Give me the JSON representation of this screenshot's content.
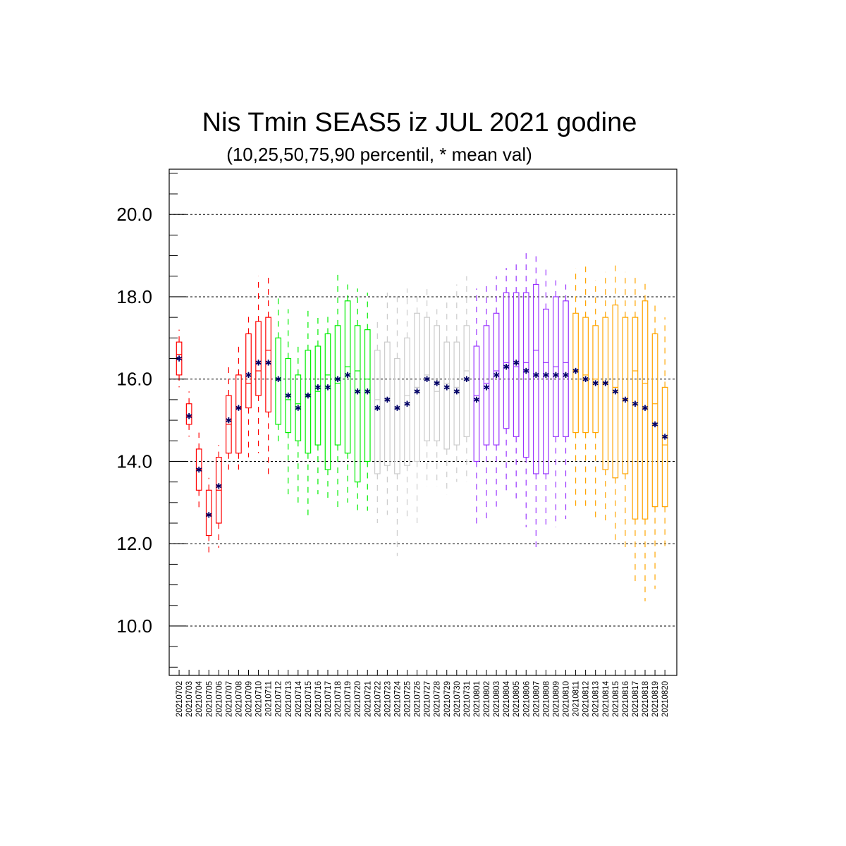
{
  "chart_data": {
    "type": "box",
    "title": "Nis Tmin SEAS5 iz JUL 2021 godine",
    "subtitle": "(10,25,50,75,90 percentil, * mean val)",
    "xlabel": "",
    "ylabel": "",
    "ylim": [
      8.8,
      21.1
    ],
    "yticks": [
      10.0,
      12.0,
      14.0,
      16.0,
      18.0,
      20.0
    ],
    "ytick_labels": [
      "10.0",
      "12.0",
      "14.0",
      "16.0",
      "18.0",
      "20.0"
    ],
    "y_minor_step": 0.5,
    "grid": "horizontal dashed at major ticks",
    "mean_marker": "*",
    "mean_color": "#000066",
    "month_colors": {
      "early_july": "#ff0000",
      "mid_july": "#00ee00",
      "late_july": "#cccccc",
      "early_august": "#9933ff",
      "mid_august": "#ffa500"
    },
    "categories": [
      "20210702",
      "20210703",
      "20210704",
      "20210705",
      "20210706",
      "20210707",
      "20210708",
      "20210709",
      "20210710",
      "20210711",
      "20210712",
      "20210713",
      "20210714",
      "20210715",
      "20210716",
      "20210717",
      "20210718",
      "20210719",
      "20210720",
      "20210721",
      "20210722",
      "20210723",
      "20210724",
      "20210725",
      "20210726",
      "20210727",
      "20210728",
      "20210729",
      "20210730",
      "20210731",
      "20210801",
      "20210802",
      "20210803",
      "20210804",
      "20210805",
      "20210806",
      "20210807",
      "20210808",
      "20210809",
      "20210810",
      "20210811",
      "20210812",
      "20210813",
      "20210814",
      "20210815",
      "20210816",
      "20210817",
      "20210818",
      "20210819",
      "20210820"
    ],
    "color_groups": [
      "early_july",
      "early_july",
      "early_july",
      "early_july",
      "early_july",
      "early_july",
      "early_july",
      "early_july",
      "early_july",
      "early_july",
      "mid_july",
      "mid_july",
      "mid_july",
      "mid_july",
      "mid_july",
      "mid_july",
      "mid_july",
      "mid_july",
      "mid_july",
      "mid_july",
      "late_july",
      "late_july",
      "late_july",
      "late_july",
      "late_july",
      "late_july",
      "late_july",
      "late_july",
      "late_july",
      "late_july",
      "early_august",
      "early_august",
      "early_august",
      "early_august",
      "early_august",
      "early_august",
      "early_august",
      "early_august",
      "early_august",
      "early_august",
      "mid_august",
      "mid_august",
      "mid_august",
      "mid_august",
      "mid_august",
      "mid_august",
      "mid_august",
      "mid_august",
      "mid_august",
      "mid_august"
    ],
    "p10": [
      15.8,
      14.6,
      12.8,
      11.7,
      11.9,
      13.8,
      13.8,
      14.1,
      14.2,
      13.6,
      14.4,
      13.2,
      13.0,
      12.6,
      13.2,
      13.0,
      12.8,
      13.0,
      12.7,
      12.8,
      12.5,
      12.7,
      11.7,
      12.6,
      12.5,
      13.4,
      13.4,
      13.2,
      13.5,
      13.5,
      12.4,
      12.5,
      12.9,
      13.3,
      13.1,
      12.4,
      11.8,
      12.4,
      12.4,
      12.6,
      12.8,
      12.8,
      12.6,
      12.5,
      12.0,
      11.9,
      11.0,
      10.6,
      10.9,
      11.9
    ],
    "p25": [
      16.1,
      14.9,
      13.3,
      12.2,
      12.5,
      14.2,
      14.2,
      15.3,
      15.6,
      15.2,
      14.9,
      14.7,
      14.5,
      14.2,
      14.4,
      13.8,
      14.4,
      14.2,
      13.5,
      14.0,
      13.7,
      13.9,
      13.7,
      13.9,
      14.0,
      14.5,
      14.5,
      14.3,
      14.4,
      14.6,
      14.0,
      14.4,
      14.4,
      14.8,
      14.6,
      14.1,
      13.7,
      13.7,
      14.6,
      14.6,
      14.7,
      14.7,
      14.7,
      13.8,
      13.6,
      13.7,
      12.6,
      12.6,
      12.9,
      12.9
    ],
    "p50": [
      16.6,
      15.1,
      13.8,
      12.7,
      13.3,
      14.9,
      15.3,
      15.9,
      16.2,
      16.7,
      16.0,
      15.5,
      15.4,
      15.6,
      15.7,
      16.1,
      15.9,
      16.3,
      16.2,
      16.0,
      15.5,
      15.5,
      15.3,
      15.6,
      15.8,
      16.1,
      15.7,
      15.9,
      15.8,
      16.2,
      15.6,
      15.9,
      16.2,
      16.4,
      16.3,
      16.4,
      16.7,
      16.4,
      16.3,
      16.4,
      16.2,
      16.1,
      16.0,
      15.9,
      15.8,
      15.5,
      16.2,
      15.9,
      15.4,
      14.4
    ],
    "p75": [
      16.9,
      15.4,
      14.3,
      13.3,
      14.1,
      15.6,
      16.1,
      17.1,
      17.4,
      17.5,
      17.0,
      16.5,
      16.1,
      16.7,
      16.8,
      17.1,
      17.3,
      17.9,
      17.3,
      17.2,
      16.7,
      16.9,
      16.5,
      17.0,
      17.6,
      17.5,
      17.3,
      16.9,
      16.9,
      17.3,
      16.8,
      17.3,
      17.6,
      18.1,
      18.1,
      18.1,
      18.3,
      17.7,
      18.0,
      17.9,
      17.6,
      17.5,
      17.3,
      17.5,
      17.8,
      17.5,
      17.5,
      17.9,
      17.1,
      15.8
    ],
    "p90": [
      17.2,
      15.7,
      14.7,
      13.6,
      14.4,
      16.3,
      16.9,
      17.6,
      18.5,
      18.5,
      18.0,
      17.7,
      16.9,
      17.7,
      17.6,
      17.6,
      18.6,
      18.3,
      18.2,
      18.1,
      17.4,
      18.1,
      18.1,
      18.2,
      18.1,
      18.2,
      17.7,
      17.9,
      18.3,
      18.5,
      18.2,
      18.3,
      18.5,
      18.7,
      18.9,
      19.1,
      19.0,
      18.7,
      18.4,
      18.3,
      18.7,
      18.8,
      18.4,
      18.6,
      18.8,
      18.6,
      18.5,
      18.4,
      17.8,
      17.5
    ],
    "mean": [
      16.5,
      15.1,
      13.8,
      12.7,
      13.4,
      15.0,
      15.3,
      16.1,
      16.4,
      16.4,
      16.0,
      15.6,
      15.3,
      15.6,
      15.8,
      15.8,
      16.0,
      16.1,
      15.7,
      15.7,
      15.3,
      15.5,
      15.3,
      15.4,
      15.7,
      16.0,
      15.9,
      15.8,
      15.7,
      16.0,
      15.5,
      15.8,
      16.1,
      16.3,
      16.4,
      16.2,
      16.1,
      16.1,
      16.1,
      16.1,
      16.2,
      16.0,
      15.9,
      15.9,
      15.7,
      15.5,
      15.4,
      15.3,
      14.9,
      14.6
    ]
  }
}
